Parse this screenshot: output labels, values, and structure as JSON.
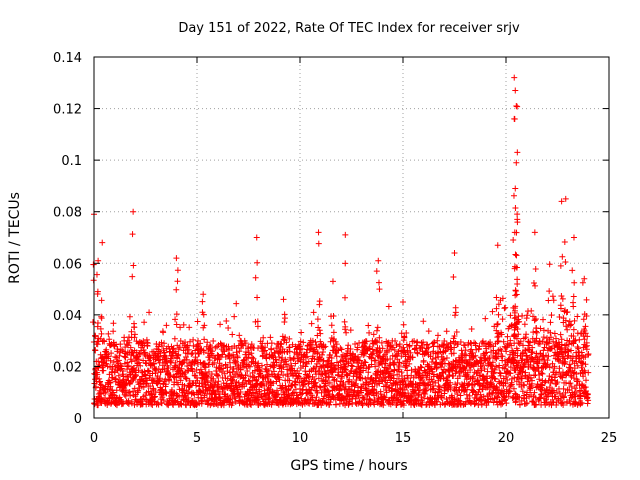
{
  "chart_data": {
    "type": "scatter",
    "title": "Day 151 of 2022, Rate Of TEC Index for receiver srjv",
    "xlabel": "GPS time / hours",
    "ylabel": "ROTI / TECUs",
    "xlim": [
      0,
      25
    ],
    "ylim": [
      0,
      0.14
    ],
    "xticks": [
      "0",
      "5",
      "10",
      "15",
      "20",
      "25"
    ],
    "yticks": [
      "0",
      "0.02",
      "0.04",
      "0.06",
      "0.08",
      "0.1",
      "0.12",
      "0.14"
    ],
    "grid": true,
    "marker": "+",
    "color": "#ff0000",
    "series": [
      {
        "name": "ROTI",
        "description": "dense band of samples 0-24 h, mostly 0.005-0.03 TECU, with spikes",
        "x_range": [
          0,
          24
        ],
        "typical_range": [
          0.005,
          0.03
        ],
        "peaks": [
          {
            "x": 0.0,
            "y": 0.079
          },
          {
            "x": 0.2,
            "y": 0.061
          },
          {
            "x": 0.4,
            "y": 0.068
          },
          {
            "x": 1.9,
            "y": 0.08
          },
          {
            "x": 4.0,
            "y": 0.062
          },
          {
            "x": 5.3,
            "y": 0.048
          },
          {
            "x": 7.9,
            "y": 0.07
          },
          {
            "x": 9.2,
            "y": 0.046
          },
          {
            "x": 10.9,
            "y": 0.072
          },
          {
            "x": 11.6,
            "y": 0.053
          },
          {
            "x": 12.2,
            "y": 0.071
          },
          {
            "x": 13.8,
            "y": 0.061
          },
          {
            "x": 15.0,
            "y": 0.045
          },
          {
            "x": 17.5,
            "y": 0.064
          },
          {
            "x": 19.6,
            "y": 0.067
          },
          {
            "x": 20.4,
            "y": 0.132
          },
          {
            "x": 20.45,
            "y": 0.127
          },
          {
            "x": 20.5,
            "y": 0.121
          },
          {
            "x": 20.4,
            "y": 0.116
          },
          {
            "x": 20.55,
            "y": 0.103
          },
          {
            "x": 20.5,
            "y": 0.099
          },
          {
            "x": 20.45,
            "y": 0.089
          },
          {
            "x": 21.4,
            "y": 0.072
          },
          {
            "x": 22.7,
            "y": 0.084
          },
          {
            "x": 22.9,
            "y": 0.085
          },
          {
            "x": 23.3,
            "y": 0.07
          },
          {
            "x": 23.8,
            "y": 0.054
          }
        ]
      }
    ]
  }
}
